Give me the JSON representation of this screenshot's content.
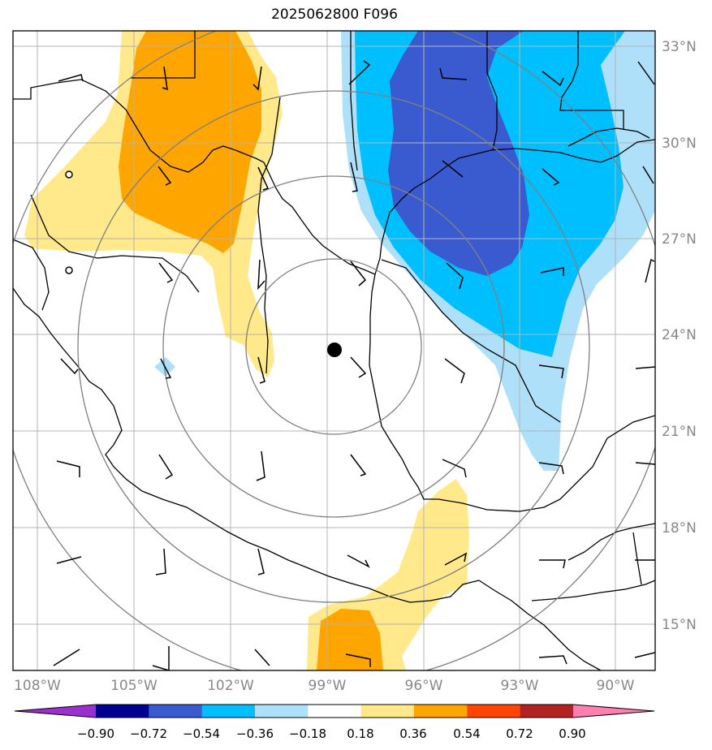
{
  "title": "2025062800 F096",
  "map": {
    "latitude_labels": [
      "33°N",
      "30°N",
      "27°N",
      "24°N",
      "21°N",
      "18°N",
      "15°N"
    ],
    "longitude_labels": [
      "108°W",
      "105°W",
      "102°W",
      "99°W",
      "96°W",
      "93°W",
      "90°W"
    ],
    "center_marker": {
      "lon": -99.2,
      "lat": 23.5
    }
  },
  "colorbar": {
    "labels": [
      "−0.90",
      "−0.72",
      "−0.54",
      "−0.36",
      "−0.18",
      "0.18",
      "0.36",
      "0.54",
      "0.72",
      "0.90"
    ],
    "colors": [
      "#9b30d0",
      "#000090",
      "#3a5bd0",
      "#00bfff",
      "#aee0fa",
      "#ffffff",
      "#ffe98a",
      "#ffa500",
      "#ff4500",
      "#b22222",
      "#ff7fb0"
    ]
  },
  "colors": {
    "orange": "#ffa500",
    "light_yellow": "#ffe98a",
    "dark_blue": "#3a5bd0",
    "deep_sky_blue": "#00bfff",
    "light_blue": "#aee0fa",
    "range_rings": "#808080",
    "grid": "#b4b4b4",
    "coastline": "#000000"
  }
}
